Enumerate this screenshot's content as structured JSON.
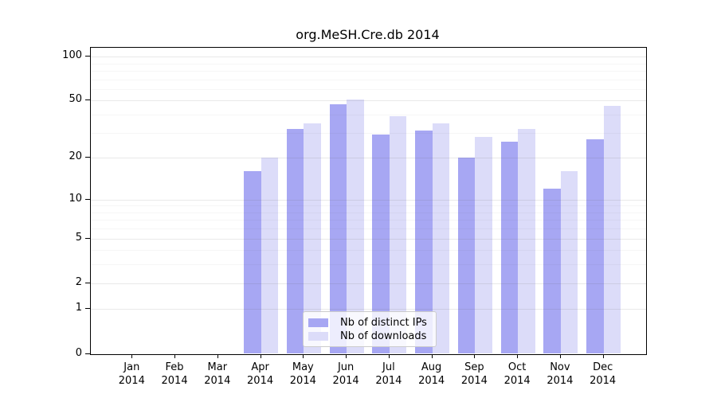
{
  "title": "org.MeSH.Cre.db 2014",
  "chart_data": {
    "type": "bar",
    "title": "org.MeSH.Cre.db 2014",
    "categories": [
      "Jan 2014",
      "Feb 2014",
      "Mar 2014",
      "Apr 2014",
      "May 2014",
      "Jun 2014",
      "Jul 2014",
      "Aug 2014",
      "Sep 2014",
      "Oct 2014",
      "Nov 2014",
      "Dec 2014"
    ],
    "series": [
      {
        "name": "Nb of distinct IPs",
        "color": "#a7a7f3",
        "values": [
          0,
          0,
          0,
          16,
          32,
          47,
          29,
          31,
          20,
          26,
          12,
          27
        ]
      },
      {
        "name": "Nb of downloads",
        "color": "#dcdcf9",
        "values": [
          0,
          0,
          0,
          20,
          35,
          51,
          39,
          35,
          28,
          32,
          16,
          46
        ]
      }
    ],
    "xlabel": "",
    "ylabel": "",
    "y_scale": "log10(1+x)",
    "ylim": [
      0,
      115
    ],
    "y_major_ticks": [
      0,
      1,
      2,
      5,
      10,
      20,
      50,
      100
    ],
    "y_minor_gridlines": [
      3,
      4,
      6,
      7,
      8,
      9,
      30,
      40,
      60,
      70,
      80,
      90
    ],
    "grid": true,
    "legend_position": "inside-bottom-center"
  },
  "colors": {
    "bar_distinct_ips": "#a7a7f3",
    "bar_downloads": "#dcdcf9",
    "grid_major": "#ececec",
    "grid_minor": "#f6f6f6",
    "axis": "#000000",
    "legend_border": "#cccccc"
  }
}
